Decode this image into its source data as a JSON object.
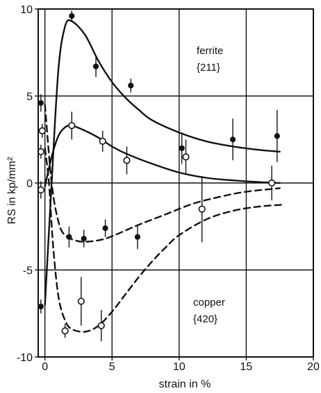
{
  "chart_data": {
    "type": "scatter",
    "xlabel": "strain in %",
    "ylabel": "RS in kp/mm²",
    "xlim": [
      -0.5,
      20
    ],
    "ylim": [
      -10,
      10
    ],
    "x_ticks": [
      0,
      5,
      10,
      15,
      20
    ],
    "y_ticks": [
      -10,
      -5,
      0,
      5,
      10
    ],
    "x_tick_labels": [
      "0",
      "5",
      "10",
      "15",
      "20"
    ],
    "y_tick_labels": [
      "-10",
      "-5",
      "0",
      "5",
      "10"
    ],
    "grid": true,
    "annotations": [
      {
        "text": "ferrite",
        "x": 13.4,
        "y": 7.4
      },
      {
        "text": "{211}",
        "x": 13.4,
        "y": 6.3
      },
      {
        "text": "copper",
        "x": 13.4,
        "y": -6.6
      },
      {
        "text": "{420}",
        "x": 13.4,
        "y": -7.7
      }
    ],
    "series": [
      {
        "marker": "filled",
        "line": "solid",
        "points": [
          {
            "x": -0.3,
            "y": 4.6,
            "err": 0.5
          },
          {
            "x": 2.0,
            "y": 9.6,
            "err": 0.3
          },
          {
            "x": 3.8,
            "y": 6.7,
            "err": 0.6
          },
          {
            "x": 6.4,
            "y": 5.6,
            "err": 0.4
          },
          {
            "x": 10.2,
            "y": 2.0,
            "err": 0.9
          },
          {
            "x": 14.0,
            "y": 2.5,
            "err": 1.2
          },
          {
            "x": 17.3,
            "y": 2.7,
            "err": 1.5
          }
        ],
        "curve": [
          [
            0.0,
            -7.0
          ],
          [
            0.5,
            0.0
          ],
          [
            1.0,
            6.5
          ],
          [
            1.5,
            9.0
          ],
          [
            2.0,
            9.3
          ],
          [
            3.0,
            8.5
          ],
          [
            4.0,
            7.0
          ],
          [
            5.0,
            5.8
          ],
          [
            6.0,
            4.9
          ],
          [
            7.0,
            4.2
          ],
          [
            8.0,
            3.6
          ],
          [
            10.0,
            2.9
          ],
          [
            12.0,
            2.4
          ],
          [
            14.0,
            2.1
          ],
          [
            16.0,
            1.9
          ],
          [
            17.5,
            1.8
          ]
        ]
      },
      {
        "marker": "open",
        "line": "solid",
        "points": [
          {
            "x": -0.2,
            "y": 3.0,
            "err": 0.4
          },
          {
            "x": -0.3,
            "y": 1.8,
            "err": 0.4
          },
          {
            "x": -0.3,
            "y": -0.4,
            "err": 0.5
          },
          {
            "x": 2.0,
            "y": 3.3,
            "err": 0.8
          },
          {
            "x": 4.3,
            "y": 2.4,
            "err": 0.6
          },
          {
            "x": 6.1,
            "y": 1.3,
            "err": 0.8
          },
          {
            "x": 10.5,
            "y": 1.5,
            "err": 1.0
          },
          {
            "x": 11.7,
            "y": -1.5,
            "err": 1.9
          },
          {
            "x": 16.9,
            "y": 0.0,
            "err": 1.0
          }
        ],
        "curve": [
          [
            0.0,
            -0.2
          ],
          [
            0.5,
            1.5
          ],
          [
            1.0,
            2.7
          ],
          [
            1.5,
            3.2
          ],
          [
            2.0,
            3.3
          ],
          [
            3.0,
            3.0
          ],
          [
            4.0,
            2.6
          ],
          [
            5.0,
            2.1
          ],
          [
            6.0,
            1.7
          ],
          [
            8.0,
            1.1
          ],
          [
            10.0,
            0.6
          ],
          [
            12.0,
            0.3
          ],
          [
            14.0,
            0.15
          ],
          [
            16.0,
            0.05
          ],
          [
            17.5,
            0.0
          ]
        ]
      },
      {
        "marker": "filled",
        "line": "dashed",
        "points": [
          {
            "x": -0.3,
            "y": -7.1,
            "err": 0.4
          },
          {
            "x": 1.8,
            "y": -3.1,
            "err": 0.6
          },
          {
            "x": 2.9,
            "y": -3.2,
            "err": 0.5
          },
          {
            "x": 4.5,
            "y": -2.6,
            "err": 0.5
          },
          {
            "x": 6.9,
            "y": -3.1,
            "err": 0.7
          }
        ],
        "curve": [
          [
            0.0,
            4.5
          ],
          [
            0.5,
            0.0
          ],
          [
            1.0,
            -2.2
          ],
          [
            1.5,
            -3.0
          ],
          [
            2.5,
            -3.35
          ],
          [
            3.5,
            -3.35
          ],
          [
            4.5,
            -3.2
          ],
          [
            5.5,
            -2.9
          ],
          [
            7.0,
            -2.4
          ],
          [
            9.0,
            -1.8
          ],
          [
            11.0,
            -1.2
          ],
          [
            13.0,
            -0.8
          ],
          [
            15.0,
            -0.5
          ],
          [
            17.5,
            -0.3
          ]
        ]
      },
      {
        "marker": "open",
        "line": "dashed",
        "points": [
          {
            "x": 1.5,
            "y": -8.5,
            "err": 0.4
          },
          {
            "x": 2.7,
            "y": -6.8,
            "err": 1.4
          },
          {
            "x": 4.2,
            "y": -8.2,
            "err": 0.9
          }
        ],
        "curve": [
          [
            0.0,
            2.0
          ],
          [
            0.3,
            0.0
          ],
          [
            0.6,
            -3.5
          ],
          [
            1.0,
            -6.5
          ],
          [
            1.5,
            -7.9
          ],
          [
            2.0,
            -8.4
          ],
          [
            3.0,
            -8.55
          ],
          [
            4.0,
            -8.2
          ],
          [
            5.0,
            -7.4
          ],
          [
            6.0,
            -6.4
          ],
          [
            7.0,
            -5.4
          ],
          [
            8.0,
            -4.5
          ],
          [
            9.0,
            -3.7
          ],
          [
            10.0,
            -3.0
          ],
          [
            12.0,
            -2.1
          ],
          [
            14.0,
            -1.6
          ],
          [
            16.0,
            -1.35
          ],
          [
            17.7,
            -1.25
          ]
        ]
      }
    ]
  }
}
